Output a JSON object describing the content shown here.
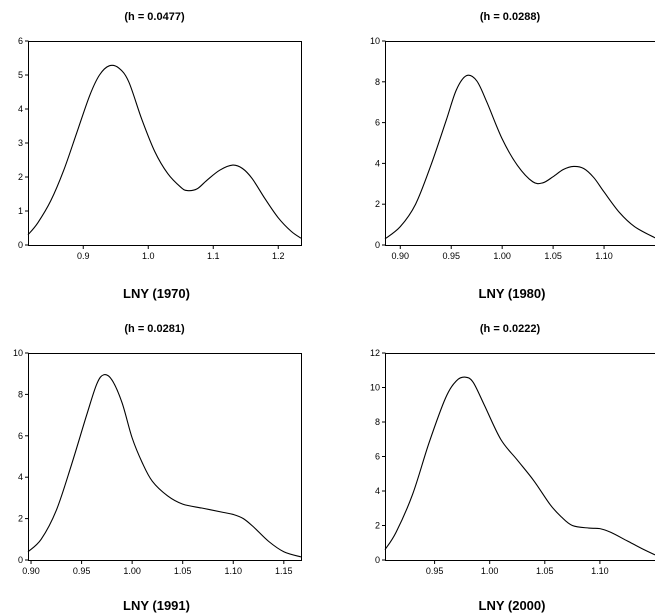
{
  "chart_data": [
    {
      "type": "line",
      "title": "(h = 0.0477)",
      "xlabel": "LNY (1970)",
      "ylabel": "",
      "xlim": [
        0.815,
        1.235
      ],
      "ylim": [
        0,
        6
      ],
      "xticks": [
        0.9,
        1.0,
        1.1,
        1.2
      ],
      "xtick_labels": [
        "0.9",
        "1.0",
        "1.1",
        "1.2"
      ],
      "yticks": [
        0,
        1,
        2,
        3,
        4,
        5,
        6
      ],
      "ytick_labels": [
        "0",
        "1",
        "2",
        "3",
        "4",
        "5",
        "6"
      ],
      "grid": false,
      "series": [
        {
          "x": [
            0.815,
            0.83,
            0.85,
            0.87,
            0.89,
            0.91,
            0.925,
            0.94,
            0.955,
            0.97,
            0.99,
            1.01,
            1.03,
            1.05,
            1.06,
            1.075,
            1.09,
            1.11,
            1.13,
            1.145,
            1.16,
            1.18,
            1.2,
            1.22,
            1.235
          ],
          "y": [
            0.3,
            0.65,
            1.3,
            2.2,
            3.3,
            4.4,
            5.0,
            5.27,
            5.2,
            4.8,
            3.7,
            2.75,
            2.1,
            1.7,
            1.6,
            1.65,
            1.9,
            2.2,
            2.35,
            2.25,
            1.95,
            1.35,
            0.8,
            0.4,
            0.2
          ]
        }
      ]
    },
    {
      "type": "line",
      "title": "(h = 0.0288)",
      "xlabel": "LNY (1980)",
      "ylabel": "",
      "xlim": [
        0.885,
        1.15
      ],
      "ylim": [
        0,
        10
      ],
      "xticks": [
        0.9,
        0.95,
        1.0,
        1.05,
        1.1
      ],
      "xtick_labels": [
        "0.90",
        "0.95",
        "1.00",
        "1.05",
        "1.10"
      ],
      "yticks": [
        0,
        2,
        4,
        6,
        8,
        10
      ],
      "ytick_labels": [
        "0",
        "2",
        "4",
        "6",
        "8",
        "10"
      ],
      "grid": false,
      "series": [
        {
          "x": [
            0.885,
            0.9,
            0.915,
            0.93,
            0.945,
            0.955,
            0.965,
            0.975,
            0.985,
            1.0,
            1.015,
            1.03,
            1.04,
            1.05,
            1.06,
            1.07,
            1.08,
            1.09,
            1.1,
            1.115,
            1.13,
            1.15
          ],
          "y": [
            0.3,
            0.9,
            2.0,
            3.9,
            6.1,
            7.6,
            8.3,
            8.05,
            7.0,
            5.2,
            3.9,
            3.1,
            3.05,
            3.35,
            3.7,
            3.85,
            3.75,
            3.3,
            2.6,
            1.6,
            0.9,
            0.35
          ]
        }
      ]
    },
    {
      "type": "line",
      "title": "(h = 0.0281)",
      "xlabel": "LNY (1991)",
      "ylabel": "",
      "xlim": [
        0.897,
        1.167
      ],
      "ylim": [
        0,
        10
      ],
      "xticks": [
        0.9,
        0.95,
        1.0,
        1.05,
        1.1,
        1.15
      ],
      "xtick_labels": [
        "0.90",
        "0.95",
        "1.00",
        "1.05",
        "1.10",
        "1.15"
      ],
      "yticks": [
        0,
        2,
        4,
        6,
        8,
        10
      ],
      "ytick_labels": [
        "0",
        "2",
        "4",
        "6",
        "8",
        "10"
      ],
      "grid": false,
      "series": [
        {
          "x": [
            0.897,
            0.91,
            0.925,
            0.94,
            0.955,
            0.965,
            0.972,
            0.98,
            0.99,
            1.0,
            1.01,
            1.02,
            1.035,
            1.05,
            1.07,
            1.09,
            1.1,
            1.11,
            1.12,
            1.135,
            1.15,
            1.167
          ],
          "y": [
            0.4,
            1.0,
            2.4,
            4.6,
            7.0,
            8.5,
            8.95,
            8.7,
            7.6,
            5.9,
            4.7,
            3.8,
            3.1,
            2.7,
            2.5,
            2.3,
            2.2,
            2.0,
            1.6,
            0.9,
            0.4,
            0.15
          ]
        }
      ]
    },
    {
      "type": "line",
      "title": "(h = 0.0222)",
      "xlabel": "LNY (2000)",
      "ylabel": "",
      "xlim": [
        0.905,
        1.15
      ],
      "ylim": [
        0,
        12
      ],
      "xticks": [
        0.95,
        1.0,
        1.05,
        1.1
      ],
      "xtick_labels": [
        "0.95",
        "1.00",
        "1.05",
        "1.10"
      ],
      "yticks": [
        0,
        2,
        4,
        6,
        8,
        10,
        12
      ],
      "ytick_labels": [
        "0",
        "2",
        "4",
        "6",
        "8",
        "10",
        "12"
      ],
      "grid": false,
      "series": [
        {
          "x": [
            0.905,
            0.915,
            0.93,
            0.945,
            0.96,
            0.97,
            0.978,
            0.985,
            0.995,
            1.01,
            1.025,
            1.04,
            1.055,
            1.065,
            1.075,
            1.09,
            1.1,
            1.11,
            1.125,
            1.14,
            1.15
          ],
          "y": [
            0.6,
            1.6,
            3.8,
            6.8,
            9.4,
            10.4,
            10.6,
            10.3,
            9.0,
            7.0,
            5.8,
            4.6,
            3.2,
            2.5,
            2.0,
            1.85,
            1.82,
            1.6,
            1.1,
            0.6,
            0.3
          ]
        }
      ]
    }
  ]
}
